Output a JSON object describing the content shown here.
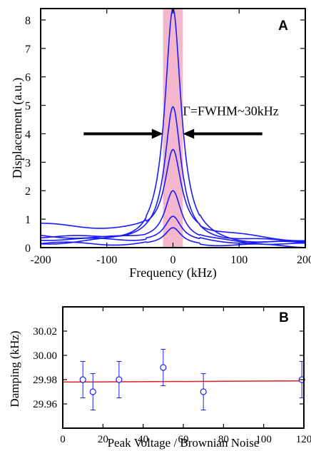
{
  "chart_data": [
    {
      "panel": "A",
      "type": "line",
      "xlabel": "Frequency (kHz)",
      "ylabel": "Displacement  (a.u.)",
      "xlim": [
        -200,
        200
      ],
      "ylim": [
        0,
        8.4
      ],
      "xticks": [
        -200,
        -100,
        0,
        100,
        200
      ],
      "xtick_labels": [
        "-200",
        "-100",
        "0",
        "100",
        "200"
      ],
      "yticks": [
        0,
        1,
        2,
        3,
        4,
        5,
        6,
        7,
        8
      ],
      "ytick_labels": [
        "0",
        "1",
        "2",
        "3",
        "4",
        "5",
        "6",
        "7",
        "8"
      ],
      "annotation": "Γ=FWHM~30kHz",
      "shaded_band": {
        "x_from": -15,
        "x_to": 15,
        "color": "#f4b8cc"
      },
      "line_color": "#1a1aff",
      "series": [
        {
          "peak": 8.4,
          "halfwidth": 15,
          "baseline_left": 0.12,
          "baseline_right": 0.12
        },
        {
          "peak": 4.95,
          "halfwidth": 15,
          "baseline_left": 0.35,
          "baseline_right": 0.18
        },
        {
          "peak": 3.45,
          "halfwidth": 15,
          "baseline_left": 0.8,
          "baseline_right": 0.25
        },
        {
          "peak": 2.0,
          "halfwidth": 15,
          "baseline_left": 0.4,
          "baseline_right": 0.1
        },
        {
          "peak": 1.1,
          "halfwidth": 15,
          "baseline_left": 0.3,
          "baseline_right": 0.15
        },
        {
          "peak": 0.7,
          "halfwidth": 15,
          "baseline_left": 0.15,
          "baseline_right": 0.05
        }
      ]
    },
    {
      "panel": "B",
      "type": "scatter",
      "xlabel": "Peak Voltage / Brownian Noise",
      "ylabel": "Damping (kHz)",
      "xlim": [
        0,
        120
      ],
      "ylim": [
        29.94,
        30.04
      ],
      "xticks": [
        0,
        20,
        40,
        60,
        80,
        100,
        120
      ],
      "xtick_labels": [
        "0",
        "20",
        "40",
        "60",
        "80",
        "100",
        "120"
      ],
      "yticks": [
        29.96,
        29.98,
        30.0,
        30.02
      ],
      "ytick_labels": [
        "29.96",
        "29.98",
        "30.00",
        "30.02"
      ],
      "points": [
        {
          "x": 10,
          "y": 29.98,
          "err": 0.015
        },
        {
          "x": 15,
          "y": 29.97,
          "err": 0.015
        },
        {
          "x": 28,
          "y": 29.98,
          "err": 0.015
        },
        {
          "x": 50,
          "y": 29.99,
          "err": 0.015
        },
        {
          "x": 70,
          "y": 29.97,
          "err": 0.015
        },
        {
          "x": 119,
          "y": 29.98,
          "err": 0.015
        }
      ],
      "fit_line": {
        "y_start": 29.978,
        "y_end": 29.979,
        "color": "#e02020"
      },
      "point_color": "#2020ff"
    }
  ],
  "panels": {
    "a_letter": "A",
    "b_letter": "B"
  }
}
